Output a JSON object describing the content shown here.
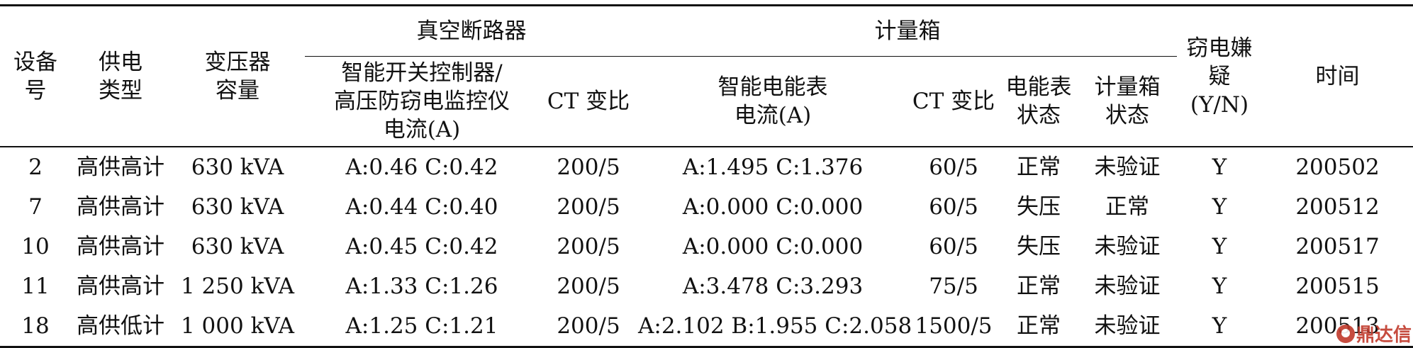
{
  "table": {
    "header_groups": {
      "breaker": "真空断路器",
      "meter_box": "计量箱"
    },
    "columns": {
      "device_no": "设备号",
      "supply_type": "供电类型",
      "transformer_capacity": "变压器容量",
      "smart_switch_current": "智能开关控制器/高压防窃电监控仪电流(A)",
      "breaker_ct_ratio": "CT 变比",
      "smart_meter_current": "智能电能表电流(A)",
      "meter_ct_ratio": "CT 变比",
      "meter_status": "电能表状态",
      "box_status": "计量箱状态",
      "theft_suspect": "窃电嫌疑(Y/N)",
      "time": "时间"
    },
    "rows": [
      {
        "device_no": "2",
        "supply_type": "高供高计",
        "transformer_capacity": "630 kVA",
        "smart_switch_current": "A:0.46 C:0.42",
        "breaker_ct_ratio": "200/5",
        "smart_meter_current": "A:1.495 C:1.376",
        "meter_ct_ratio": "60/5",
        "meter_status": "正常",
        "box_status": "未验证",
        "theft_suspect": "Y",
        "time": "200502"
      },
      {
        "device_no": "7",
        "supply_type": "高供高计",
        "transformer_capacity": "630 kVA",
        "smart_switch_current": "A:0.44 C:0.40",
        "breaker_ct_ratio": "200/5",
        "smart_meter_current": "A:0.000 C:0.000",
        "meter_ct_ratio": "60/5",
        "meter_status": "失压",
        "box_status": "正常",
        "theft_suspect": "Y",
        "time": "200512"
      },
      {
        "device_no": "10",
        "supply_type": "高供高计",
        "transformer_capacity": "630 kVA",
        "smart_switch_current": "A:0.45 C:0.42",
        "breaker_ct_ratio": "200/5",
        "smart_meter_current": "A:0.000 C:0.000",
        "meter_ct_ratio": "60/5",
        "meter_status": "失压",
        "box_status": "未验证",
        "theft_suspect": "Y",
        "time": "200517"
      },
      {
        "device_no": "11",
        "supply_type": "高供高计",
        "transformer_capacity": "1 250 kVA",
        "smart_switch_current": "A:1.33 C:1.26",
        "breaker_ct_ratio": "200/5",
        "smart_meter_current": "A:3.478 C:3.293",
        "meter_ct_ratio": "75/5",
        "meter_status": "正常",
        "box_status": "未验证",
        "theft_suspect": "Y",
        "time": "200515"
      },
      {
        "device_no": "18",
        "supply_type": "高供低计",
        "transformer_capacity": "1 000 kVA",
        "smart_switch_current": "A:1.25 C:1.21",
        "breaker_ct_ratio": "200/5",
        "smart_meter_current": "A:2.102 B:1.955 C:2.058",
        "meter_ct_ratio": "1500/5",
        "meter_status": "正常",
        "box_status": "未验证",
        "theft_suspect": "Y",
        "time": "200513"
      }
    ]
  },
  "watermark": {
    "text": "鼎达信",
    "color": "#c0392b",
    "icon": "logo-icon"
  }
}
